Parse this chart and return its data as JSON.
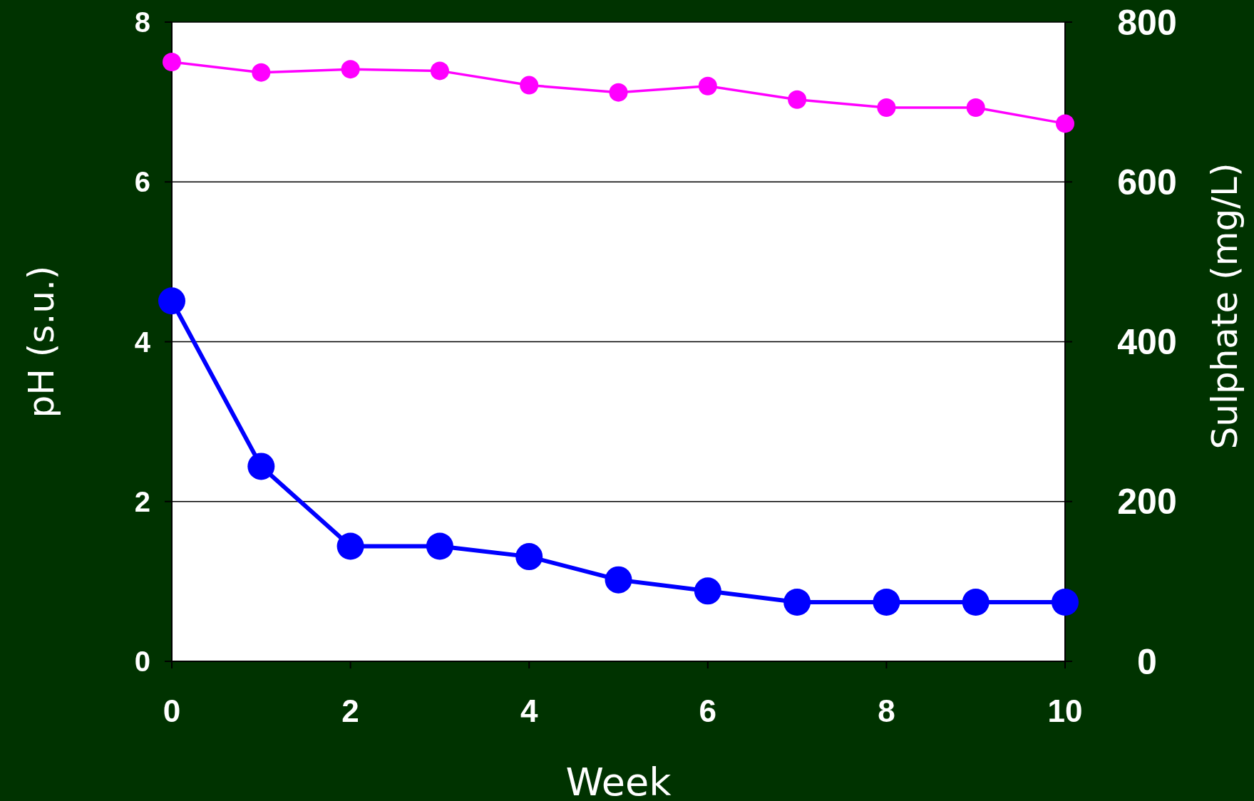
{
  "chart_data": {
    "type": "line",
    "xlabel": "Week",
    "ylabel": "pH (s.u.)",
    "y2label": "Sulphate (mg/L)",
    "x": [
      0,
      1,
      2,
      3,
      4,
      5,
      6,
      7,
      8,
      9,
      10
    ],
    "series": [
      {
        "color": "#ff00ff",
        "values": [
          7.5,
          7.37,
          7.41,
          7.39,
          7.21,
          7.12,
          7.2,
          7.03,
          6.93,
          6.93,
          6.73
        ]
      },
      {
        "color": "#0000ff",
        "axis": "y2",
        "values": [
          451,
          244,
          144,
          144,
          131,
          102,
          88,
          74,
          74,
          74,
          74
        ]
      }
    ],
    "xlim": [
      0,
      10
    ],
    "xticks": [
      0,
      2,
      4,
      6,
      8,
      10
    ],
    "ylim": [
      0,
      8
    ],
    "yticks": [
      0,
      2,
      4,
      6,
      8
    ],
    "y2lim": [
      0,
      800
    ],
    "y2ticks": [
      0,
      200,
      400,
      600,
      800
    ],
    "grid": "y",
    "marker": "circle"
  }
}
